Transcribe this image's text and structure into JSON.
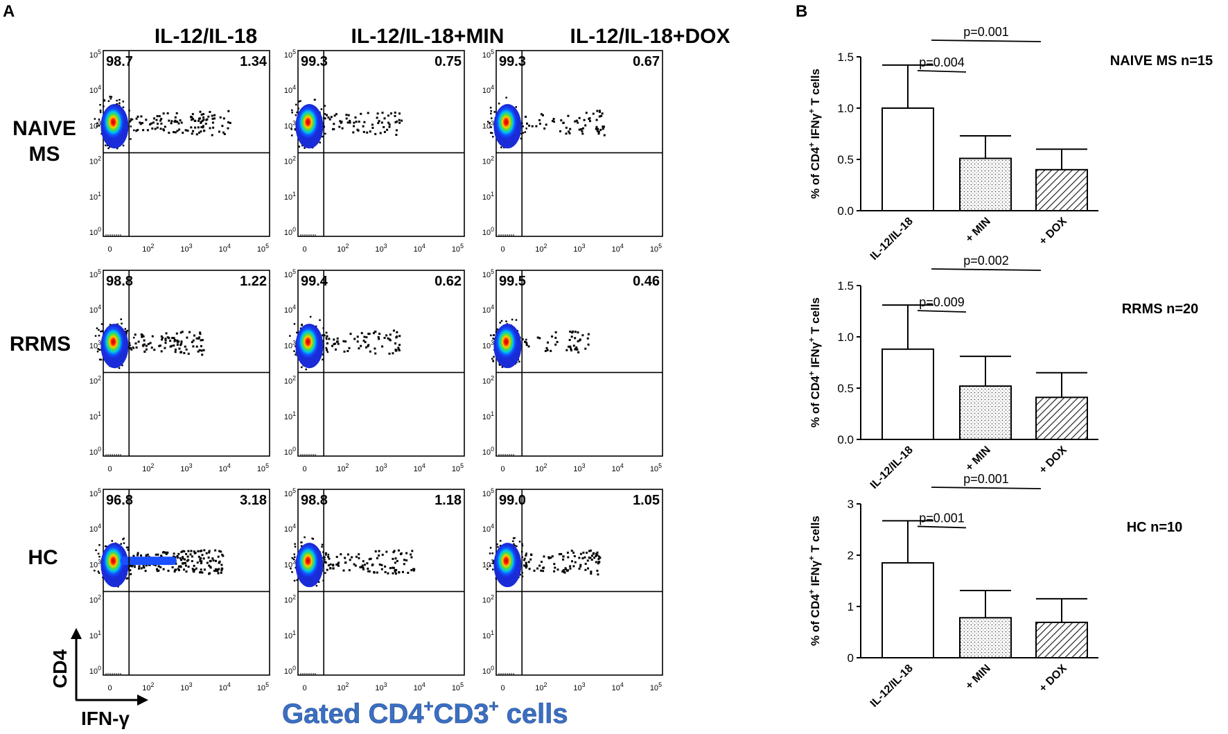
{
  "panel_a": {
    "label": "A",
    "columns": [
      "IL-12/IL-18",
      "IL-12/IL-18+MIN",
      "IL-12/IL-18+DOX"
    ],
    "rows": [
      {
        "name": "NAIVE MS",
        "line1": "NAIVE",
        "line2": "MS"
      },
      {
        "name": "RRMS",
        "line1": "RRMS",
        "line2": ""
      },
      {
        "name": "HC",
        "line1": "HC",
        "line2": ""
      }
    ],
    "quadrant_values": [
      [
        [
          "98.7",
          "1.34"
        ],
        [
          "99.3",
          "0.75"
        ],
        [
          "99.3",
          "0.67"
        ]
      ],
      [
        [
          "98.8",
          "1.22"
        ],
        [
          "99.4",
          "0.62"
        ],
        [
          "99.5",
          "0.46"
        ]
      ],
      [
        [
          "96.8",
          "3.18"
        ],
        [
          "98.8",
          "1.18"
        ],
        [
          "99.0",
          "1.05"
        ]
      ]
    ],
    "y_ticks": [
      {
        "base": "10",
        "exp": "5"
      },
      {
        "base": "10",
        "exp": "4"
      },
      {
        "base": "10",
        "exp": "3"
      },
      {
        "base": "10",
        "exp": "2"
      },
      {
        "base": "10",
        "exp": "1"
      },
      {
        "base": "10",
        "exp": "0"
      }
    ],
    "x_ticks": [
      {
        "base": "0",
        "exp": ""
      },
      {
        "base": "10",
        "exp": "2"
      },
      {
        "base": "10",
        "exp": "3"
      },
      {
        "base": "10",
        "exp": "4"
      },
      {
        "base": "10",
        "exp": "5"
      }
    ],
    "axis_y_label": "CD4",
    "axis_x_label": "IFN-γ",
    "gate_label_main": "Gated CD4",
    "gate_sup1": "+",
    "gate_mid": "CD3",
    "gate_sup2": "+",
    "gate_tail": " cells",
    "gate_color": "#3a6fc4"
  },
  "panel_b": {
    "label": "B",
    "ylabel_prefix": "% of CD4",
    "ylabel_sup1": "+",
    "ylabel_mid": " IFNγ",
    "ylabel_sup2": "+",
    "ylabel_suffix": " T cells"
  },
  "chart_data": [
    {
      "type": "bar",
      "title": "NAIVE MS n=15",
      "categories": [
        "IL-12/IL-18",
        "+ MIN",
        "+ DOX"
      ],
      "values": [
        1.0,
        0.51,
        0.4
      ],
      "errors": [
        0.42,
        0.22,
        0.2
      ],
      "patterns": [
        "none",
        "dots",
        "hatch"
      ],
      "ylim": [
        0,
        1.5
      ],
      "yticks": [
        0.0,
        0.5,
        1.0,
        1.5
      ],
      "ytick_labels": [
        "0.0",
        "0.5",
        "1.0",
        "1.5"
      ],
      "ylabel": "% of CD4+ IFNγ+ T cells",
      "annotations": [
        {
          "text": "p=0.004",
          "from": 0,
          "to": 1,
          "level": 1
        },
        {
          "text": "p=0.001",
          "from": 0,
          "to": 2,
          "level": 2
        }
      ]
    },
    {
      "type": "bar",
      "title": "RRMS n=20",
      "categories": [
        "IL-12/IL-18",
        "+ MIN",
        "+ DOX"
      ],
      "values": [
        0.88,
        0.52,
        0.41
      ],
      "errors": [
        0.43,
        0.29,
        0.24
      ],
      "patterns": [
        "none",
        "dots",
        "hatch"
      ],
      "ylim": [
        0,
        1.5
      ],
      "yticks": [
        0.0,
        0.5,
        1.0,
        1.5
      ],
      "ytick_labels": [
        "0.0",
        "0.5",
        "1.0",
        "1.5"
      ],
      "ylabel": "% of CD4+ IFNγ+ T cells",
      "annotations": [
        {
          "text": "p=0.009",
          "from": 0,
          "to": 1,
          "level": 1
        },
        {
          "text": "p=0.002",
          "from": 0,
          "to": 2,
          "level": 2
        }
      ]
    },
    {
      "type": "bar",
      "title": "HC n=10",
      "categories": [
        "IL-12/IL-18",
        "+ MIN",
        "+ DOX"
      ],
      "values": [
        1.85,
        0.78,
        0.69
      ],
      "errors": [
        0.82,
        0.53,
        0.46
      ],
      "patterns": [
        "none",
        "dots",
        "hatch"
      ],
      "ylim": [
        0,
        3
      ],
      "yticks": [
        0,
        1,
        2,
        3
      ],
      "ytick_labels": [
        "0",
        "1",
        "2",
        "3"
      ],
      "ylabel": "% of CD4+ IFNγ+ T cells",
      "annotations": [
        {
          "text": "p=0.001",
          "from": 0,
          "to": 1,
          "level": 1
        },
        {
          "text": "p=0.001",
          "from": 0,
          "to": 2,
          "level": 2
        }
      ]
    }
  ]
}
